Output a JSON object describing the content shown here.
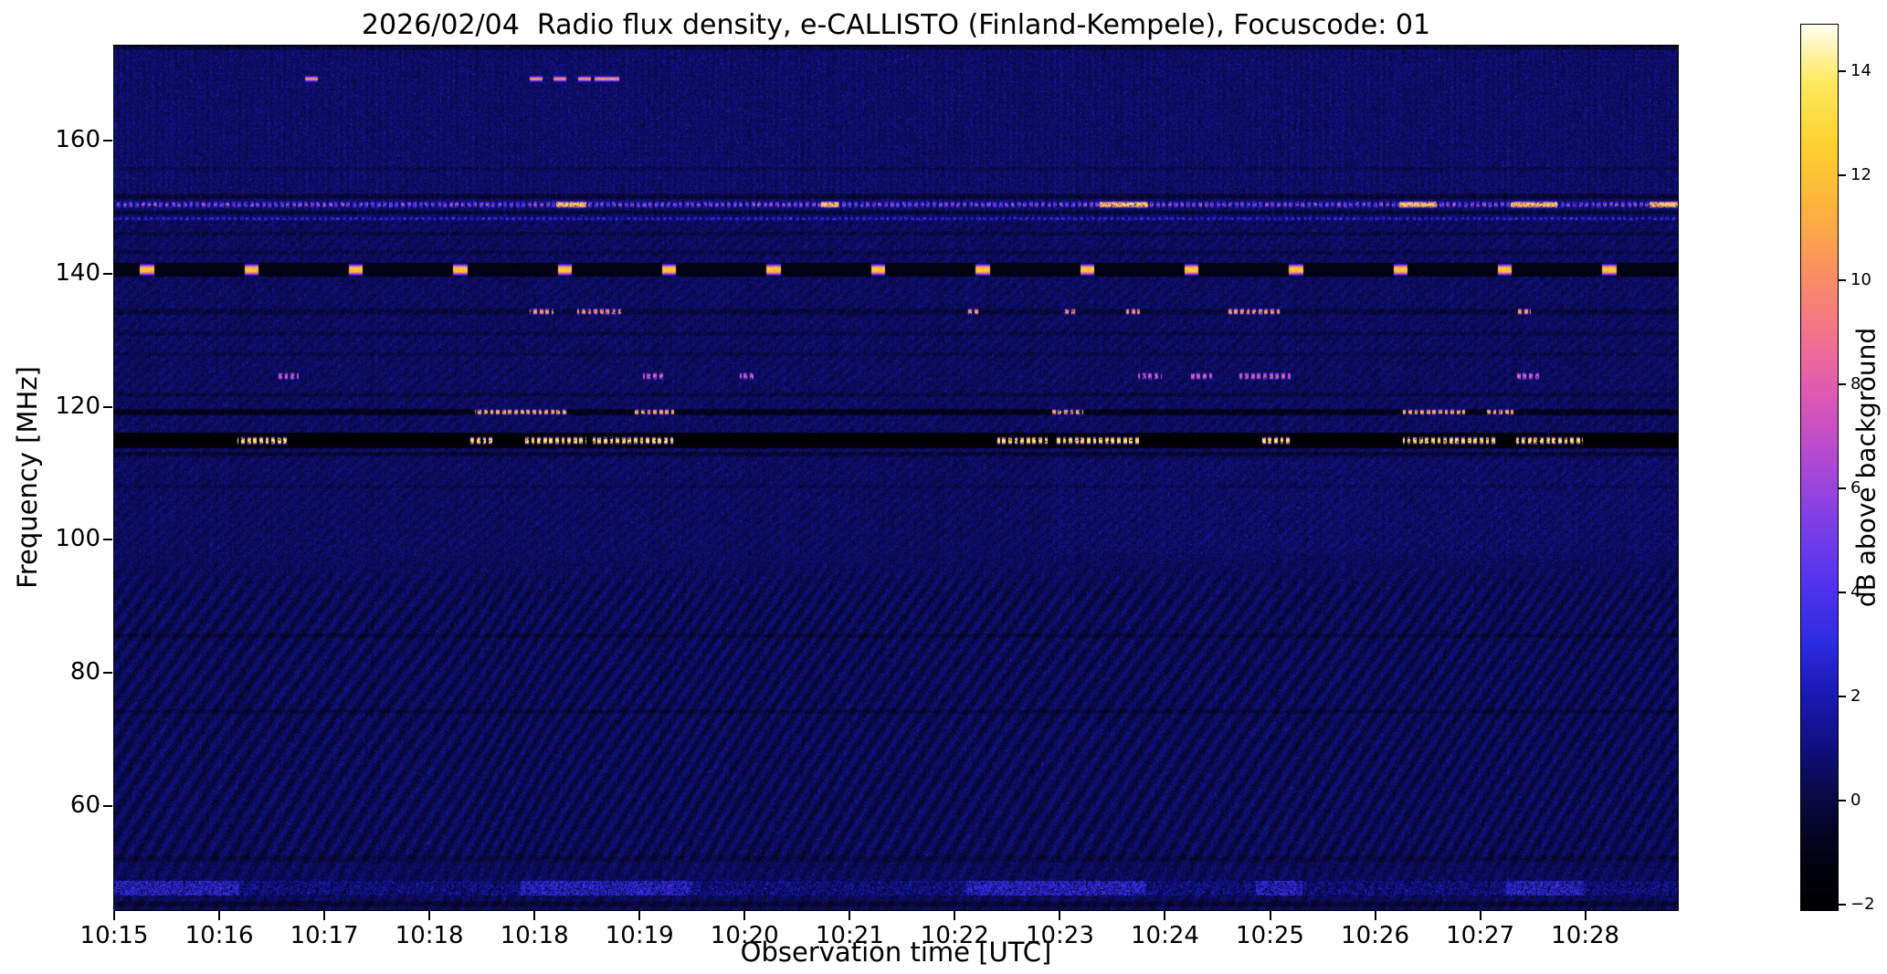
{
  "chart_data": {
    "type": "heatmap",
    "title": "2026/02/04  Radio flux density, e-CALLISTO (Finland-Kempele), Focuscode: 01",
    "date": "2026/02/04",
    "station": "Finland-Kempele",
    "instrument": "e-CALLISTO",
    "focuscode": "01",
    "xlabel": "Observation time [UTC]",
    "ylabel": "Frequency [MHz]",
    "colorbar_label": "dB above background",
    "x_tick_labels": [
      "10:15",
      "10:16",
      "10:17",
      "10:18",
      "10:18",
      "10:19",
      "10:20",
      "10:21",
      "10:22",
      "10:23",
      "10:24",
      "10:25",
      "10:26",
      "10:27",
      "10:28"
    ],
    "x_tick_start_frac": 0.0,
    "x_tick_step_frac": 0.0672,
    "y_tick_labels": [
      "160",
      "140",
      "120",
      "100",
      "80",
      "60"
    ],
    "y_tick_freqs": [
      160,
      140,
      120,
      100,
      80,
      60
    ],
    "freq_range_mhz": [
      44.3,
      174.3
    ],
    "time_start_utc": "10:15",
    "time_end_utc": "10:29",
    "colorbar_ticks": [
      14,
      12,
      10,
      8,
      6,
      4,
      2,
      0,
      -2
    ],
    "colorbar_tick_labels": [
      "14",
      "12",
      "10",
      "8",
      "6",
      "4",
      "2",
      "0",
      "−2"
    ],
    "value_range_db": [
      -2.1,
      14.9
    ],
    "background_db_range": [
      -0.5,
      1.5
    ],
    "colormap_stops": [
      [
        -2.1,
        "#000000"
      ],
      [
        -1.3,
        "#03030f"
      ],
      [
        -0.5,
        "#06062a"
      ],
      [
        0.2,
        "#0a0a4e"
      ],
      [
        1.0,
        "#101080"
      ],
      [
        2.0,
        "#1a1ab4"
      ],
      [
        3.0,
        "#2c2ce0"
      ],
      [
        4.2,
        "#5434ee"
      ],
      [
        5.4,
        "#8040e6"
      ],
      [
        6.6,
        "#b44ad2"
      ],
      [
        7.8,
        "#e05ab4"
      ],
      [
        9.0,
        "#f4748c"
      ],
      [
        10.2,
        "#fa9260"
      ],
      [
        11.4,
        "#fcb43c"
      ],
      [
        12.6,
        "#fdd22e"
      ],
      [
        13.8,
        "#feea60"
      ],
      [
        14.9,
        "#fffff0"
      ]
    ],
    "features": [
      {
        "kind": "dark_line",
        "freq": 174.3,
        "width": 0.7,
        "level": -1.0
      },
      {
        "kind": "dots",
        "freq": 169.3,
        "width": 0.5,
        "level": 11,
        "times": [
          0.126,
          0.27,
          0.285,
          0.301,
          0.311,
          0.319
        ]
      },
      {
        "kind": "dark_line",
        "freq": 155.8,
        "width": 0.3,
        "level": -0.5
      },
      {
        "kind": "dark_line",
        "freq": 151.6,
        "width": 0.4,
        "level": -1.1
      },
      {
        "kind": "speckle_line",
        "freq": 150.4,
        "width": 0.55,
        "gain": 1,
        "segments": [
          [
            0.283,
            0.302
          ],
          [
            0.452,
            0.463
          ],
          [
            0.63,
            0.661
          ],
          [
            0.822,
            0.846
          ],
          [
            0.893,
            0.923
          ],
          [
            0.982,
            1.0
          ]
        ]
      },
      {
        "kind": "dark_line",
        "freq": 149.2,
        "width": 0.35,
        "level": -1.0
      },
      {
        "kind": "speckle_line",
        "freq": 148.3,
        "width": 0.35,
        "gain": 0.5,
        "segments": []
      },
      {
        "kind": "dark_line",
        "freq": 146.0,
        "width": 0.3,
        "level": -0.6
      },
      {
        "kind": "dark_line",
        "freq": 143.2,
        "width": 0.3,
        "level": -0.5
      },
      {
        "kind": "blobs",
        "freq": 140.6,
        "width": 1.0,
        "level": -1.5,
        "offset": 0.021,
        "period": 0.0668,
        "count": 15,
        "blob_halfwidth": 0.0045,
        "blob_level": 11.0
      },
      {
        "kind": "bursts",
        "freq": 134.3,
        "width": 0.5,
        "level": -0.7,
        "bright": 9.5,
        "segments": [
          [
            0.266,
            0.281
          ],
          [
            0.296,
            0.324
          ],
          [
            0.545,
            0.553
          ],
          [
            0.607,
            0.615
          ],
          [
            0.647,
            0.656
          ],
          [
            0.712,
            0.746
          ],
          [
            0.897,
            0.906
          ]
        ]
      },
      {
        "kind": "dark_line",
        "freq": 131.0,
        "width": 0.3,
        "level": -0.5
      },
      {
        "kind": "dark_line",
        "freq": 127.9,
        "width": 0.3,
        "level": -0.4
      },
      {
        "kind": "bursts",
        "freq": 124.6,
        "width": 0.6,
        "level": 0,
        "bright": 6.5,
        "segments": [
          [
            0.104,
            0.118
          ],
          [
            0.338,
            0.352
          ],
          [
            0.4,
            0.409
          ],
          [
            0.655,
            0.67
          ],
          [
            0.688,
            0.703
          ],
          [
            0.718,
            0.754
          ],
          [
            0.896,
            0.912
          ]
        ]
      },
      {
        "kind": "dark_line",
        "freq": 121.8,
        "width": 0.3,
        "level": -0.6
      },
      {
        "kind": "bursts",
        "freq": 119.2,
        "width": 0.45,
        "level": -1.7,
        "bright": 10.5,
        "segments": [
          [
            0.231,
            0.29
          ],
          [
            0.333,
            0.358
          ],
          [
            0.6,
            0.62
          ],
          [
            0.824,
            0.864
          ],
          [
            0.878,
            0.895
          ]
        ]
      },
      {
        "kind": "dark_lane",
        "freq": 114.9,
        "width": 1.15,
        "level": -1.95
      },
      {
        "kind": "bursts",
        "freq": 114.9,
        "width": 0.6,
        "level": -0.5,
        "bright": 12.5,
        "segments": [
          [
            0.079,
            0.112
          ],
          [
            0.227,
            0.243
          ],
          [
            0.261,
            0.302
          ],
          [
            0.306,
            0.358
          ],
          [
            0.565,
            0.597
          ],
          [
            0.601,
            0.657
          ],
          [
            0.734,
            0.752
          ],
          [
            0.824,
            0.883
          ],
          [
            0.895,
            0.939
          ]
        ]
      },
      {
        "kind": "dark_line",
        "freq": 112.9,
        "width": 0.35,
        "level": -1.0
      },
      {
        "kind": "dark_line",
        "freq": 108.0,
        "width": 0.3,
        "level": -0.4
      },
      {
        "kind": "dark_line",
        "freq": 85.6,
        "width": 0.35,
        "level": -0.6
      },
      {
        "kind": "dark_line",
        "freq": 74.2,
        "width": 0.35,
        "level": -0.6
      },
      {
        "kind": "dark_line",
        "freq": 52.0,
        "width": 0.5,
        "level": -0.5
      },
      {
        "kind": "speckle_band",
        "freq": 47.6,
        "width": 1.1,
        "clusters": [
          [
            0.0,
            0.08
          ],
          [
            0.26,
            0.37
          ],
          [
            0.545,
            0.66
          ],
          [
            0.73,
            0.76
          ],
          [
            0.89,
            0.94
          ]
        ]
      },
      {
        "kind": "dark_line",
        "freq": 45.2,
        "width": 0.5,
        "level": -0.8
      }
    ]
  }
}
